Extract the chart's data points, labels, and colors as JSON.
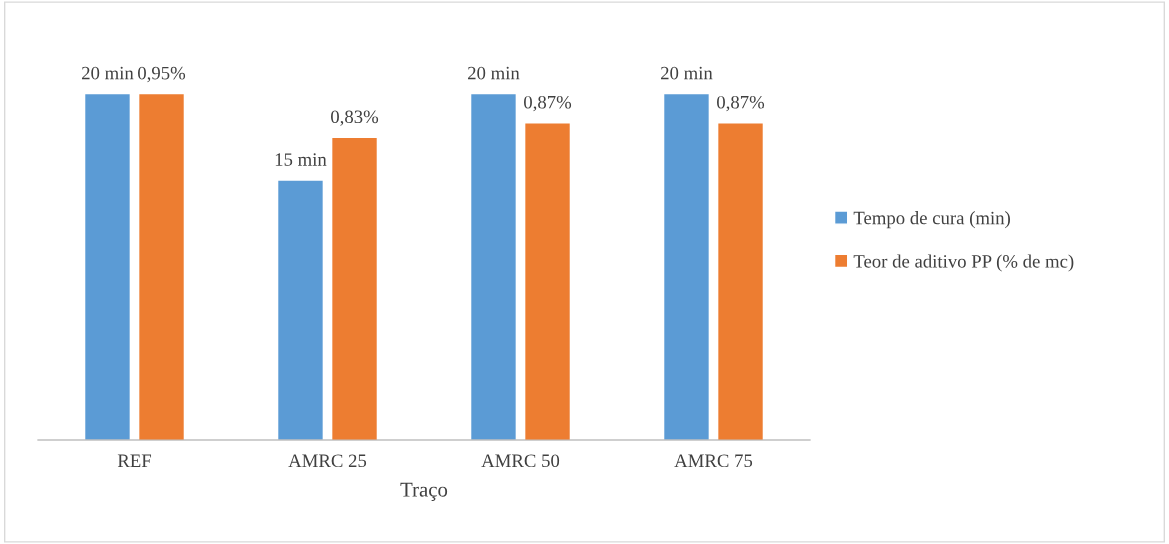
{
  "chart_data": {
    "type": "bar",
    "xlabel": "Traço",
    "categories": [
      "REF",
      "AMRC 25",
      "AMRC 50",
      "AMRC 75"
    ],
    "series": [
      {
        "name": "Tempo de cura (min)",
        "color": "#5b9bd5",
        "values": [
          20,
          15,
          20,
          20
        ],
        "value_labels": [
          "20 min",
          "15 min",
          "20 min",
          "20 min"
        ]
      },
      {
        "name": "Teor de aditivo PP (% de mc)",
        "color": "#ed7d31",
        "axis": "y2",
        "values": [
          0.95,
          0.83,
          0.87,
          0.87
        ],
        "value_labels": [
          "0,95%",
          "0,83%",
          "0,87%",
          "0,87%"
        ]
      }
    ],
    "tick_labels": "x",
    "legend": "right"
  }
}
